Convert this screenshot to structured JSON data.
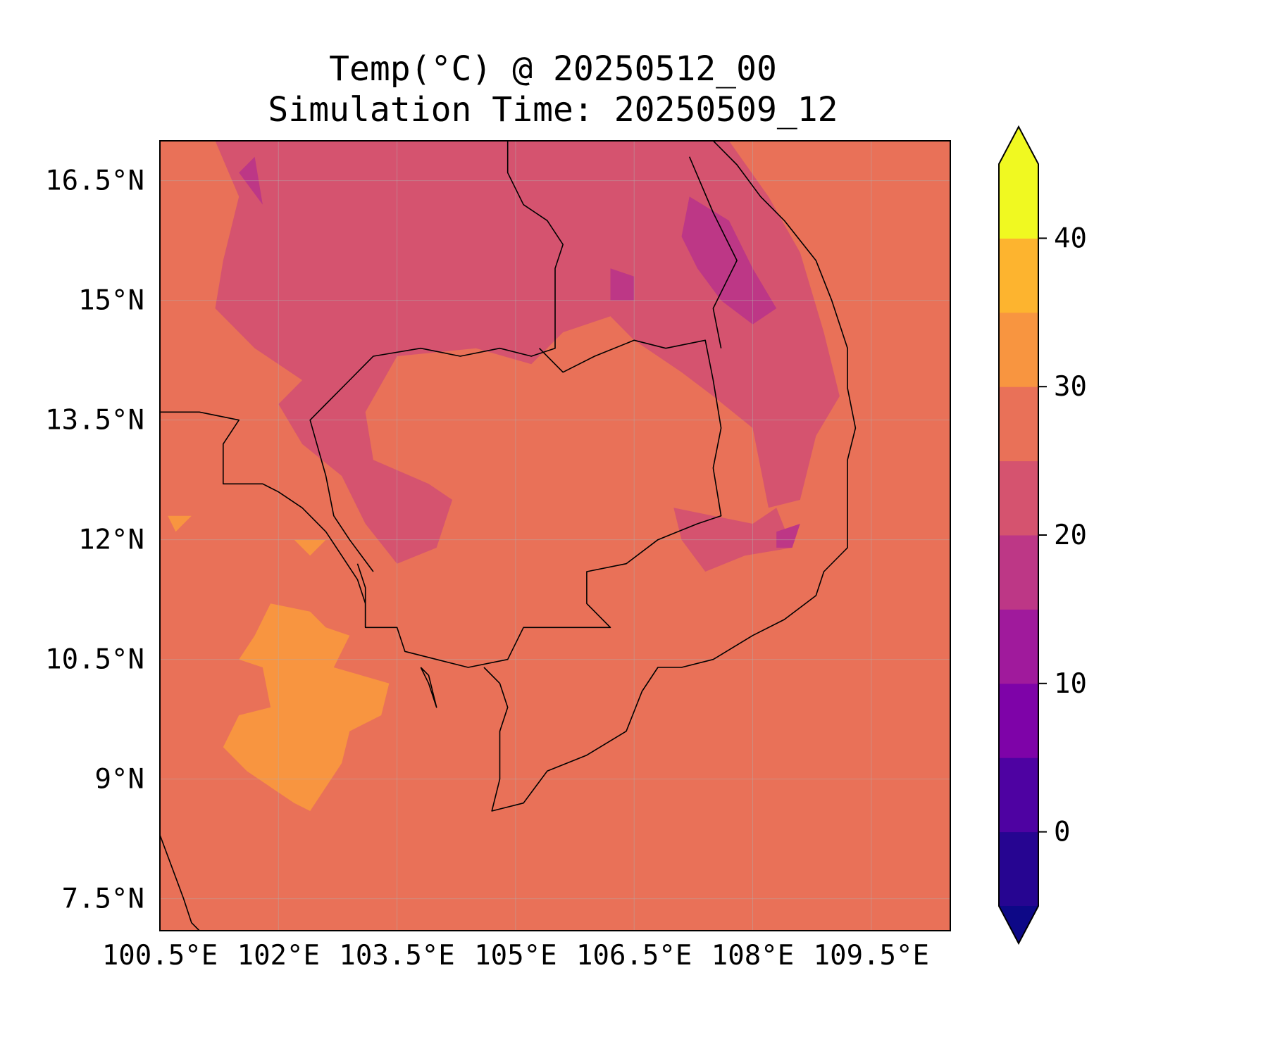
{
  "title": {
    "line1": "Temp(°C) @ 20250512_00",
    "line2": "Simulation Time: 20250509_12"
  },
  "map": {
    "variable": "Temp(°C)",
    "lon_range": [
      100.5,
      110.5
    ],
    "lat_range": [
      7.1,
      17.0
    ],
    "grid": true,
    "x_ticks": [
      {
        "value": 100.5,
        "label": "100.5°E"
      },
      {
        "value": 102.0,
        "label": "102°E"
      },
      {
        "value": 103.5,
        "label": "103.5°E"
      },
      {
        "value": 105.0,
        "label": "105°E"
      },
      {
        "value": 106.5,
        "label": "106.5°E"
      },
      {
        "value": 108.0,
        "label": "108°E"
      },
      {
        "value": 109.5,
        "label": "109.5°E"
      }
    ],
    "y_ticks": [
      {
        "value": 7.5,
        "label": "7.5°N"
      },
      {
        "value": 9.0,
        "label": "9°N"
      },
      {
        "value": 10.5,
        "label": "10.5°N"
      },
      {
        "value": 12.0,
        "label": "12°N"
      },
      {
        "value": 13.5,
        "label": "13.5°N"
      },
      {
        "value": 15.0,
        "label": "15°N"
      },
      {
        "value": 16.5,
        "label": "16.5°N"
      }
    ],
    "background_level": 27.5,
    "regions": [
      {
        "level": 22.5,
        "points": [
          [
            101.2,
            17.0
          ],
          [
            101.5,
            16.3
          ],
          [
            101.3,
            15.5
          ],
          [
            101.2,
            14.9
          ],
          [
            101.7,
            14.4
          ],
          [
            102.3,
            14.0
          ],
          [
            102.0,
            13.7
          ],
          [
            102.3,
            13.2
          ],
          [
            102.8,
            12.8
          ],
          [
            103.1,
            12.2
          ],
          [
            103.5,
            11.7
          ],
          [
            104.0,
            11.9
          ],
          [
            104.2,
            12.5
          ],
          [
            103.9,
            12.7
          ],
          [
            103.2,
            13.0
          ],
          [
            103.1,
            13.6
          ],
          [
            103.5,
            14.3
          ],
          [
            104.5,
            14.4
          ],
          [
            105.2,
            14.2
          ],
          [
            105.6,
            14.6
          ],
          [
            106.2,
            14.8
          ],
          [
            106.5,
            14.5
          ],
          [
            107.1,
            14.1
          ],
          [
            107.5,
            13.8
          ],
          [
            108.0,
            13.4
          ],
          [
            108.2,
            12.4
          ],
          [
            108.6,
            12.5
          ],
          [
            108.8,
            13.3
          ],
          [
            109.1,
            13.8
          ],
          [
            108.9,
            14.6
          ],
          [
            108.6,
            15.6
          ],
          [
            108.2,
            16.3
          ],
          [
            107.7,
            17.0
          ]
        ]
      },
      {
        "level": 22.5,
        "points": [
          [
            107.0,
            12.4
          ],
          [
            107.5,
            12.3
          ],
          [
            108.0,
            12.2
          ],
          [
            108.3,
            12.4
          ],
          [
            108.5,
            11.9
          ],
          [
            107.9,
            11.8
          ],
          [
            107.4,
            11.6
          ],
          [
            107.1,
            12.0
          ]
        ]
      },
      {
        "level": 17.5,
        "points": [
          [
            101.5,
            16.6
          ],
          [
            101.8,
            16.2
          ],
          [
            101.7,
            16.8
          ]
        ]
      },
      {
        "level": 17.5,
        "points": [
          [
            107.2,
            16.3
          ],
          [
            107.7,
            16.0
          ],
          [
            108.0,
            15.4
          ],
          [
            108.3,
            14.9
          ],
          [
            108.0,
            14.7
          ],
          [
            107.6,
            15.0
          ],
          [
            107.3,
            15.4
          ],
          [
            107.1,
            15.8
          ]
        ]
      },
      {
        "level": 17.5,
        "points": [
          [
            106.2,
            15.4
          ],
          [
            106.5,
            15.3
          ],
          [
            106.5,
            15.0
          ],
          [
            106.2,
            15.0
          ]
        ]
      },
      {
        "level": 17.5,
        "points": [
          [
            108.3,
            12.1
          ],
          [
            108.6,
            12.2
          ],
          [
            108.5,
            11.9
          ],
          [
            108.3,
            11.9
          ]
        ]
      },
      {
        "level": 32.5,
        "points": [
          [
            101.9,
            11.2
          ],
          [
            102.4,
            11.1
          ],
          [
            102.6,
            10.9
          ],
          [
            102.9,
            10.8
          ],
          [
            102.7,
            10.4
          ],
          [
            103.4,
            10.2
          ],
          [
            103.3,
            9.8
          ],
          [
            102.9,
            9.6
          ],
          [
            102.8,
            9.2
          ],
          [
            102.4,
            8.6
          ],
          [
            102.2,
            8.7
          ],
          [
            101.6,
            9.1
          ],
          [
            101.3,
            9.4
          ],
          [
            101.5,
            9.8
          ],
          [
            101.9,
            9.9
          ],
          [
            101.8,
            10.4
          ],
          [
            101.5,
            10.5
          ],
          [
            101.7,
            10.8
          ]
        ]
      },
      {
        "level": 32.5,
        "points": [
          [
            100.6,
            12.3
          ],
          [
            100.9,
            12.3
          ],
          [
            100.7,
            12.1
          ]
        ]
      },
      {
        "level": 32.5,
        "points": [
          [
            102.2,
            12.0
          ],
          [
            102.6,
            12.0
          ],
          [
            102.4,
            11.8
          ]
        ]
      }
    ],
    "coastlines": [
      [
        [
          104.9,
          17.0
        ],
        [
          104.9,
          16.6
        ],
        [
          105.1,
          16.2
        ],
        [
          105.4,
          16.0
        ],
        [
          105.6,
          15.7
        ],
        [
          105.5,
          15.4
        ],
        [
          105.5,
          14.9
        ],
        [
          105.5,
          14.4
        ],
        [
          105.2,
          14.3
        ],
        [
          104.8,
          14.4
        ],
        [
          104.3,
          14.3
        ],
        [
          103.8,
          14.4
        ],
        [
          103.2,
          14.3
        ],
        [
          102.9,
          14.0
        ],
        [
          102.6,
          13.7
        ],
        [
          102.4,
          13.5
        ],
        [
          102.6,
          12.8
        ],
        [
          102.7,
          12.3
        ],
        [
          102.9,
          12.0
        ],
        [
          103.2,
          11.6
        ]
      ],
      [
        [
          105.3,
          14.4
        ],
        [
          105.6,
          14.1
        ],
        [
          106.0,
          14.3
        ],
        [
          106.5,
          14.5
        ],
        [
          106.9,
          14.4
        ],
        [
          107.4,
          14.5
        ],
        [
          107.5,
          14.0
        ],
        [
          107.6,
          13.4
        ],
        [
          107.5,
          12.9
        ],
        [
          107.6,
          12.3
        ],
        [
          107.3,
          12.2
        ],
        [
          106.8,
          12.0
        ],
        [
          106.4,
          11.7
        ],
        [
          105.9,
          11.6
        ],
        [
          105.9,
          11.2
        ],
        [
          106.2,
          10.9
        ],
        [
          105.7,
          10.9
        ],
        [
          105.1,
          10.9
        ],
        [
          104.9,
          10.5
        ],
        [
          104.4,
          10.4
        ],
        [
          104.0,
          10.5
        ],
        [
          103.6,
          10.6
        ],
        [
          103.5,
          10.9
        ],
        [
          103.1,
          10.9
        ],
        [
          103.1,
          11.4
        ],
        [
          103.0,
          11.7
        ]
      ],
      [
        [
          100.5,
          13.6
        ],
        [
          101.0,
          13.6
        ],
        [
          101.5,
          13.5
        ],
        [
          101.3,
          13.2
        ],
        [
          101.3,
          12.7
        ],
        [
          101.8,
          12.7
        ],
        [
          102.0,
          12.6
        ],
        [
          102.3,
          12.4
        ],
        [
          102.6,
          12.1
        ],
        [
          102.8,
          11.8
        ],
        [
          103.0,
          11.5
        ],
        [
          103.1,
          11.2
        ],
        [
          103.1,
          10.9
        ]
      ],
      [
        [
          104.6,
          10.4
        ],
        [
          104.8,
          10.2
        ],
        [
          104.9,
          9.9
        ],
        [
          104.8,
          9.6
        ],
        [
          104.8,
          9.0
        ],
        [
          104.7,
          8.6
        ],
        [
          105.1,
          8.7
        ],
        [
          105.4,
          9.1
        ],
        [
          105.9,
          9.3
        ],
        [
          106.4,
          9.6
        ],
        [
          106.6,
          10.1
        ],
        [
          106.8,
          10.4
        ],
        [
          107.1,
          10.4
        ],
        [
          107.5,
          10.5
        ],
        [
          108.0,
          10.8
        ],
        [
          108.4,
          11.0
        ],
        [
          108.8,
          11.3
        ],
        [
          108.9,
          11.6
        ],
        [
          109.2,
          11.9
        ],
        [
          109.2,
          12.5
        ],
        [
          109.2,
          13.0
        ],
        [
          109.3,
          13.4
        ],
        [
          109.2,
          13.9
        ],
        [
          109.2,
          14.4
        ],
        [
          109.0,
          15.0
        ],
        [
          108.8,
          15.5
        ],
        [
          108.4,
          16.0
        ],
        [
          108.1,
          16.3
        ],
        [
          107.8,
          16.7
        ],
        [
          107.5,
          17.0
        ]
      ],
      [
        [
          103.8,
          10.4
        ],
        [
          103.9,
          10.2
        ],
        [
          104.0,
          9.9
        ],
        [
          103.9,
          10.3
        ],
        [
          103.8,
          10.4
        ]
      ],
      [
        [
          100.5,
          8.3
        ],
        [
          100.8,
          7.5
        ],
        [
          100.9,
          7.2
        ],
        [
          101.1,
          7.0
        ]
      ],
      [
        [
          107.2,
          16.8
        ],
        [
          107.5,
          16.1
        ],
        [
          107.8,
          15.5
        ],
        [
          107.5,
          14.9
        ],
        [
          107.6,
          14.4
        ]
      ]
    ],
    "colorbar": {
      "levels": [
        -5,
        0,
        5,
        10,
        15,
        20,
        25,
        30,
        35,
        40,
        45
      ],
      "colors": [
        "#260591",
        "#4e02a2",
        "#7e03a8",
        "#a01a9c",
        "#bd3786",
        "#d5536f",
        "#e97158",
        "#f89540",
        "#fdb42f",
        "#f0f921"
      ],
      "under_color": "#0d0887",
      "over_color": "#f0f921",
      "ticks": [
        {
          "value": 0,
          "label": "0"
        },
        {
          "value": 10,
          "label": "10"
        },
        {
          "value": 20,
          "label": "20"
        },
        {
          "value": 30,
          "label": "30"
        },
        {
          "value": 40,
          "label": "40"
        }
      ]
    }
  }
}
